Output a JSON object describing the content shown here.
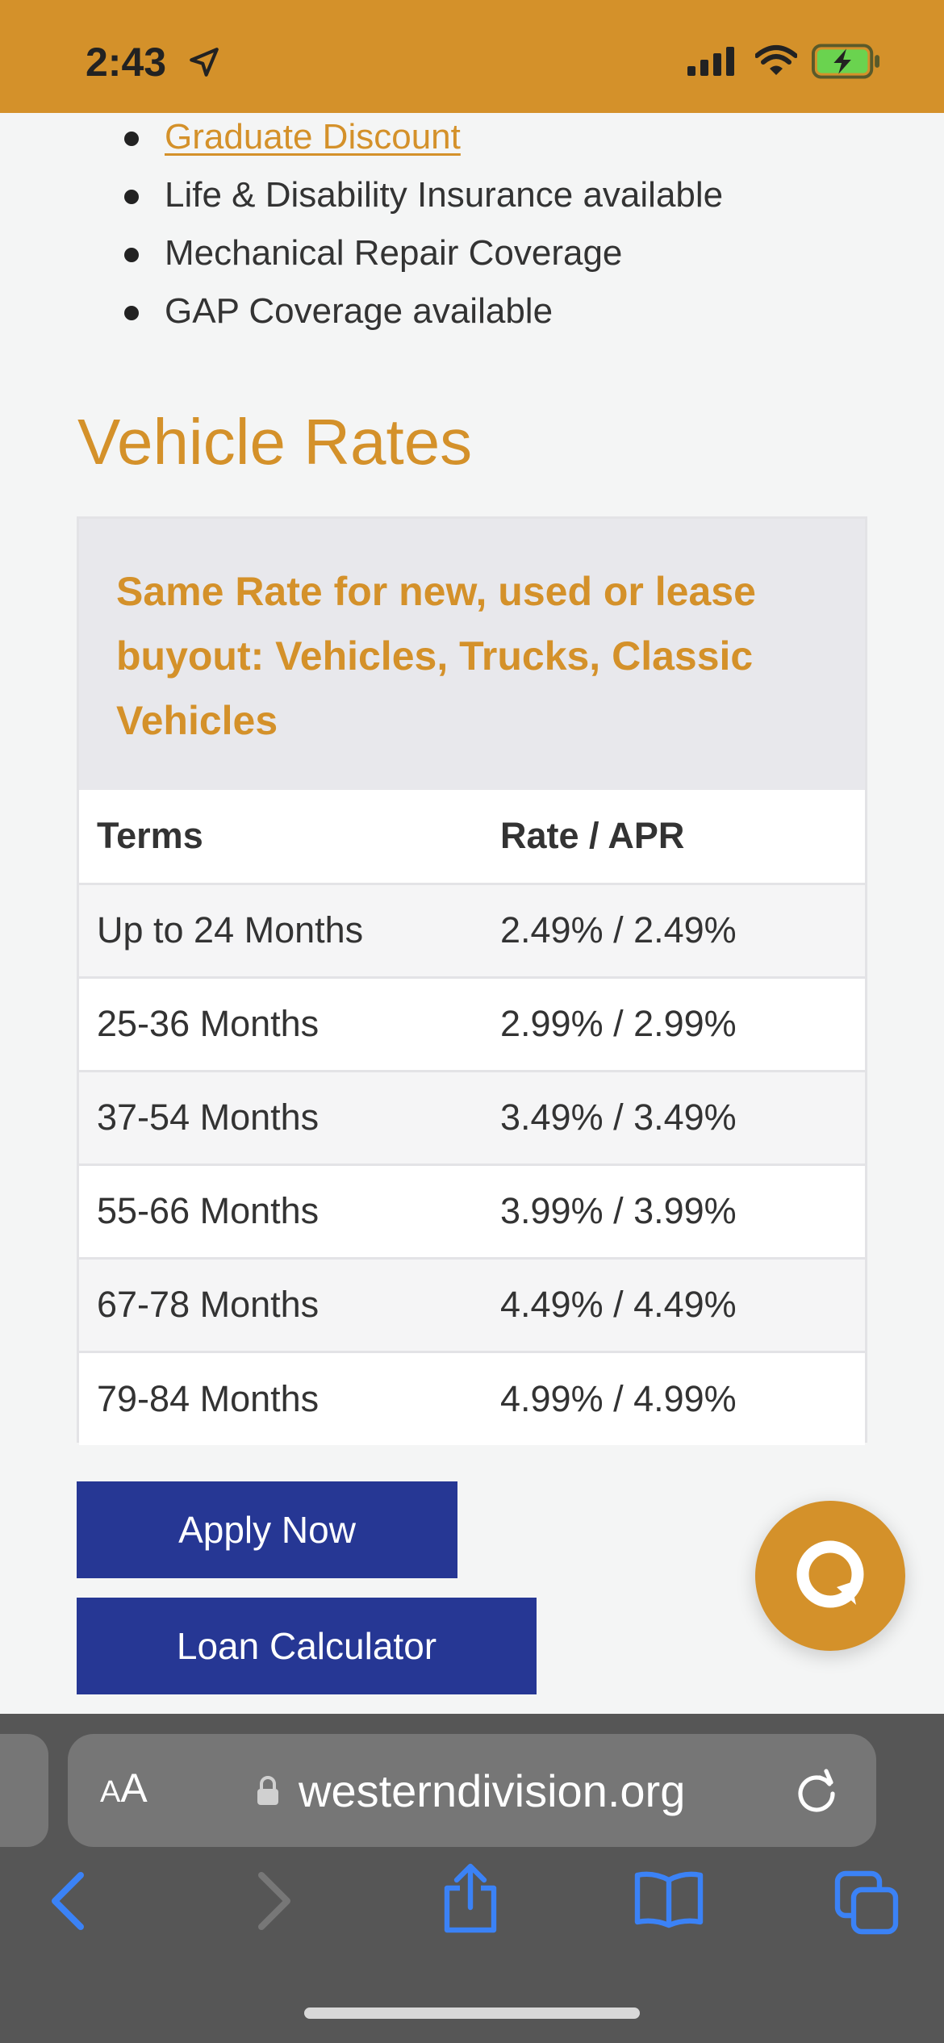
{
  "status_bar": {
    "time": "2:43",
    "location_icon": "location-arrow-icon",
    "signal_icon": "cellular-signal-icon",
    "wifi_icon": "wifi-icon",
    "battery_icon": "battery-charging-icon"
  },
  "features": [
    {
      "label": "Graduate Discount",
      "link": true
    },
    {
      "label": "Life & Disability Insurance available",
      "link": false
    },
    {
      "label": "Mechanical Repair Coverage",
      "link": false
    },
    {
      "label": "GAP Coverage available",
      "link": false
    }
  ],
  "section_title": "Vehicle Rates",
  "rate_card": {
    "header": "Same Rate for new, used or lease buyout: Vehicles, Trucks, Classic Vehicles",
    "columns": [
      "Terms",
      "Rate / APR"
    ],
    "rows": [
      {
        "term": "Up to 24 Months",
        "rate": "2.49% / 2.49%"
      },
      {
        "term": "25-36 Months",
        "rate": "2.99% / 2.99%"
      },
      {
        "term": "37-54 Months",
        "rate": "3.49% / 3.49%"
      },
      {
        "term": "55-66 Months",
        "rate": "3.99% / 3.99%"
      },
      {
        "term": "67-78 Months",
        "rate": "4.49% / 4.49%"
      },
      {
        "term": "79-84 Months",
        "rate": "4.99% / 4.99%"
      }
    ]
  },
  "buttons": {
    "apply": "Apply Now",
    "calculator": "Loan Calculator"
  },
  "browser": {
    "aa_small": "A",
    "aa_big": "A",
    "url": "westerndivision.org"
  },
  "colors": {
    "accent": "#d4912a",
    "button": "#263794",
    "browser_chrome": "#565656",
    "ios_blue": "#3b82f6"
  }
}
